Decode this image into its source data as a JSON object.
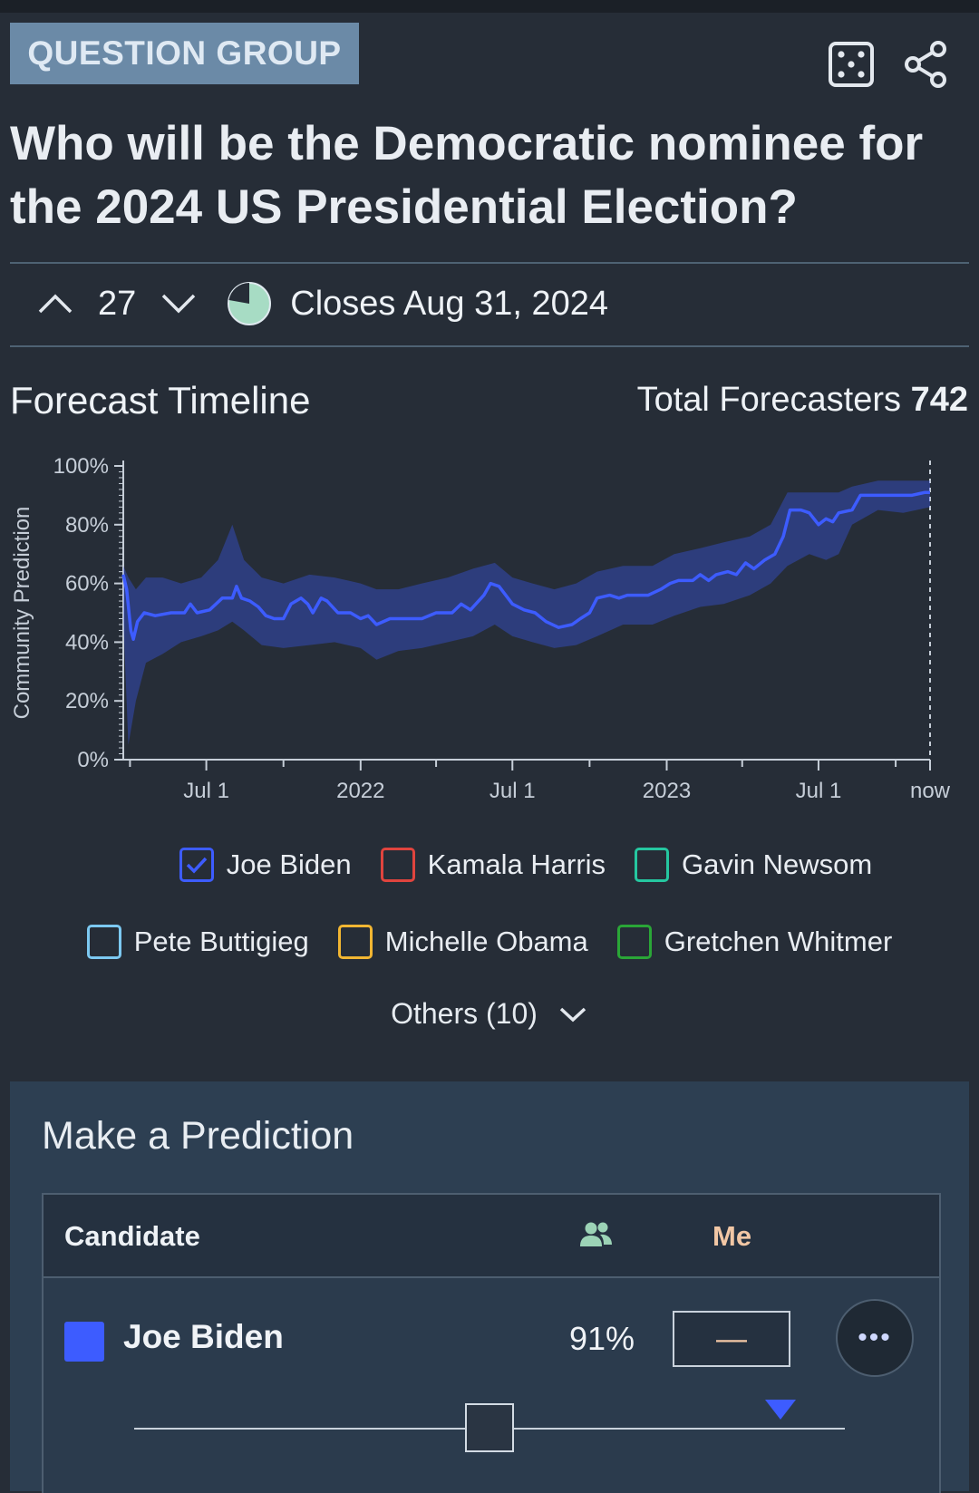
{
  "header": {
    "tag": "QUESTION GROUP",
    "title": "Who will be the Democratic nominee for the 2024 US Presidential Election?",
    "icons": [
      "dice-icon",
      "share-icon"
    ]
  },
  "meta": {
    "votes": "27",
    "closes": "Closes Aug 31, 2024"
  },
  "timeline": {
    "title": "Forecast Timeline",
    "forecasters_label": "Total Forecasters",
    "forecasters_count": "742"
  },
  "legend": {
    "items": [
      {
        "label": "Joe Biden",
        "color": "#3d5cff",
        "checked": true
      },
      {
        "label": "Kamala Harris",
        "color": "#e0443e",
        "checked": false
      },
      {
        "label": "Gavin Newsom",
        "color": "#25c7a0",
        "checked": false
      },
      {
        "label": "Pete Buttigieg",
        "color": "#7cc9f2",
        "checked": false
      },
      {
        "label": "Michelle Obama",
        "color": "#f2b632",
        "checked": false
      },
      {
        "label": "Gretchen Whitmer",
        "color": "#2aa637",
        "checked": false
      }
    ],
    "others": "Others (10)"
  },
  "prediction": {
    "title": "Make a Prediction",
    "col_candidate": "Candidate",
    "col_me": "Me",
    "row": {
      "name": "Joe Biden",
      "community": "91%",
      "me_value": "—",
      "color": "#3d5cff",
      "more": "•••"
    },
    "slider_handle_value": 0.5,
    "community_marker_value": 0.91
  },
  "chart_data": {
    "type": "line",
    "ylabel": "Community Prediction",
    "ylim": [
      0,
      100
    ],
    "y_ticks": [
      "0%",
      "20%",
      "40%",
      "60%",
      "80%",
      "100%"
    ],
    "x_ticks": [
      "Jul 1",
      "2022",
      "Jul 1",
      "2023",
      "Jul 1",
      "now"
    ],
    "x_tick_dates": [
      "2021-07-01",
      "2022-01-01",
      "2022-07-01",
      "2023-01-01",
      "2023-07-01",
      "2023-11-11"
    ],
    "series": [
      {
        "name": "Joe Biden",
        "color": "#3d5cff",
        "points": [
          [
            "2021-03-24",
            63
          ],
          [
            "2021-03-28",
            58
          ],
          [
            "2021-04-02",
            44
          ],
          [
            "2021-04-05",
            41
          ],
          [
            "2021-04-10",
            47
          ],
          [
            "2021-04-18",
            50
          ],
          [
            "2021-05-01",
            49
          ],
          [
            "2021-05-20",
            50
          ],
          [
            "2021-06-05",
            50
          ],
          [
            "2021-06-12",
            53
          ],
          [
            "2021-06-20",
            50
          ],
          [
            "2021-07-05",
            51
          ],
          [
            "2021-07-20",
            55
          ],
          [
            "2021-08-01",
            55
          ],
          [
            "2021-08-06",
            59
          ],
          [
            "2021-08-12",
            55
          ],
          [
            "2021-08-22",
            54
          ],
          [
            "2021-09-01",
            52
          ],
          [
            "2021-09-10",
            49
          ],
          [
            "2021-09-20",
            48
          ],
          [
            "2021-10-01",
            48
          ],
          [
            "2021-10-10",
            53
          ],
          [
            "2021-10-22",
            55
          ],
          [
            "2021-10-30",
            53
          ],
          [
            "2021-11-05",
            50
          ],
          [
            "2021-11-15",
            55
          ],
          [
            "2021-11-22",
            54
          ],
          [
            "2021-12-05",
            50
          ],
          [
            "2021-12-20",
            50
          ],
          [
            "2022-01-01",
            48
          ],
          [
            "2022-01-10",
            49
          ],
          [
            "2022-01-20",
            46
          ],
          [
            "2022-02-05",
            48
          ],
          [
            "2022-02-20",
            48
          ],
          [
            "2022-03-15",
            48
          ],
          [
            "2022-04-01",
            50
          ],
          [
            "2022-04-20",
            50
          ],
          [
            "2022-05-01",
            53
          ],
          [
            "2022-05-12",
            51
          ],
          [
            "2022-05-28",
            56
          ],
          [
            "2022-06-05",
            60
          ],
          [
            "2022-06-15",
            59
          ],
          [
            "2022-07-01",
            53
          ],
          [
            "2022-07-15",
            51
          ],
          [
            "2022-07-28",
            50
          ],
          [
            "2022-08-10",
            47
          ],
          [
            "2022-08-25",
            45
          ],
          [
            "2022-09-10",
            46
          ],
          [
            "2022-09-20",
            48
          ],
          [
            "2022-10-01",
            50
          ],
          [
            "2022-10-10",
            55
          ],
          [
            "2022-10-25",
            56
          ],
          [
            "2022-11-05",
            55
          ],
          [
            "2022-11-15",
            56
          ],
          [
            "2022-12-10",
            56
          ],
          [
            "2022-12-25",
            58
          ],
          [
            "2023-01-05",
            60
          ],
          [
            "2023-01-15",
            61
          ],
          [
            "2023-02-01",
            61
          ],
          [
            "2023-02-10",
            63
          ],
          [
            "2023-02-20",
            61
          ],
          [
            "2023-03-01",
            63
          ],
          [
            "2023-03-15",
            64
          ],
          [
            "2023-03-25",
            63
          ],
          [
            "2023-04-05",
            67
          ],
          [
            "2023-04-15",
            65
          ],
          [
            "2023-04-28",
            68
          ],
          [
            "2023-05-10",
            70
          ],
          [
            "2023-05-20",
            76
          ],
          [
            "2023-05-28",
            85
          ],
          [
            "2023-06-10",
            85
          ],
          [
            "2023-06-20",
            84
          ],
          [
            "2023-07-01",
            80
          ],
          [
            "2023-07-10",
            82
          ],
          [
            "2023-07-18",
            81
          ],
          [
            "2023-07-25",
            84
          ],
          [
            "2023-08-10",
            85
          ],
          [
            "2023-08-20",
            90
          ],
          [
            "2023-09-10",
            90
          ],
          [
            "2023-10-01",
            90
          ],
          [
            "2023-10-20",
            90
          ],
          [
            "2023-11-05",
            91
          ],
          [
            "2023-11-11",
            91
          ]
        ],
        "band": [
          [
            "2021-03-24",
            48,
            66
          ],
          [
            "2021-03-30",
            5,
            62
          ],
          [
            "2021-04-08",
            20,
            58
          ],
          [
            "2021-04-20",
            33,
            62
          ],
          [
            "2021-05-10",
            36,
            62
          ],
          [
            "2021-06-01",
            40,
            60
          ],
          [
            "2021-06-25",
            42,
            62
          ],
          [
            "2021-07-15",
            44,
            68
          ],
          [
            "2021-08-01",
            47,
            80
          ],
          [
            "2021-08-15",
            44,
            68
          ],
          [
            "2021-09-05",
            39,
            62
          ],
          [
            "2021-10-01",
            38,
            60
          ],
          [
            "2021-11-01",
            39,
            63
          ],
          [
            "2021-12-01",
            40,
            62
          ],
          [
            "2022-01-01",
            38,
            60
          ],
          [
            "2022-01-20",
            34,
            58
          ],
          [
            "2022-02-15",
            37,
            58
          ],
          [
            "2022-03-15",
            38,
            60
          ],
          [
            "2022-04-15",
            40,
            62
          ],
          [
            "2022-05-15",
            42,
            65
          ],
          [
            "2022-06-10",
            46,
            67
          ],
          [
            "2022-07-01",
            42,
            62
          ],
          [
            "2022-07-25",
            40,
            60
          ],
          [
            "2022-08-20",
            38,
            58
          ],
          [
            "2022-09-15",
            39,
            60
          ],
          [
            "2022-10-10",
            42,
            64
          ],
          [
            "2022-11-10",
            46,
            66
          ],
          [
            "2022-12-15",
            46,
            66
          ],
          [
            "2023-01-10",
            49,
            70
          ],
          [
            "2023-02-10",
            52,
            72
          ],
          [
            "2023-03-10",
            53,
            74
          ],
          [
            "2023-04-10",
            56,
            76
          ],
          [
            "2023-05-05",
            60,
            80
          ],
          [
            "2023-05-25",
            66,
            91
          ],
          [
            "2023-06-20",
            70,
            91
          ],
          [
            "2023-07-10",
            68,
            91
          ],
          [
            "2023-07-25",
            70,
            91
          ],
          [
            "2023-08-10",
            80,
            93
          ],
          [
            "2023-09-10",
            85,
            95
          ],
          [
            "2023-10-10",
            84,
            95
          ],
          [
            "2023-11-11",
            86,
            95
          ]
        ]
      }
    ]
  }
}
